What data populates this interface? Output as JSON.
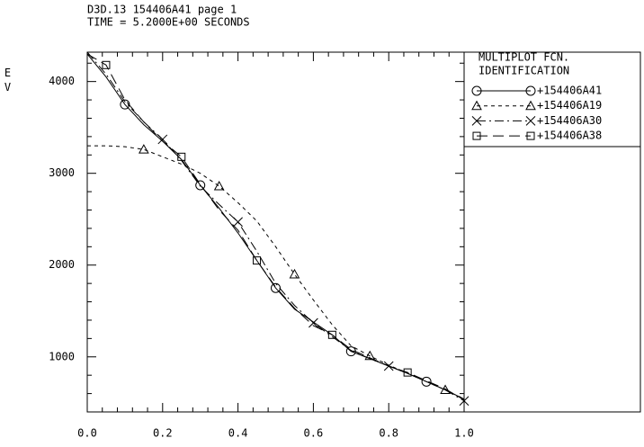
{
  "chart_data": {
    "type": "line",
    "header": [
      "D3D.13 154406A41 page 1",
      "TIME = 5.2000E+00 SECONDS"
    ],
    "y_label": "EV",
    "legend_title": [
      "MULTIPLOT FCN.",
      "IDENTIFICATION"
    ],
    "x": [
      0,
      0.05,
      0.1,
      0.15,
      0.2,
      0.25,
      0.3,
      0.35,
      0.4,
      0.45,
      0.5,
      0.55,
      0.6,
      0.65,
      0.7,
      0.75,
      0.8,
      0.85,
      0.9,
      0.95,
      1.0
    ],
    "series": [
      {
        "name": "+154406A41",
        "color": "#000000",
        "dash": "none",
        "marker": "circle",
        "values": [
          4300,
          4050,
          3750,
          3530,
          3350,
          3150,
          2870,
          2620,
          2350,
          2050,
          1750,
          1520,
          1380,
          1240,
          1060,
          980,
          900,
          820,
          730,
          640,
          540
        ]
      },
      {
        "name": "+154406A19",
        "color": "#000000",
        "dash": "4 4",
        "marker": "triangle",
        "values": [
          3300,
          3300,
          3290,
          3260,
          3180,
          3100,
          3000,
          2860,
          2680,
          2480,
          2200,
          1900,
          1620,
          1350,
          1120,
          1010,
          910,
          820,
          730,
          640,
          540
        ]
      },
      {
        "name": "+154406A30",
        "color": "#000000",
        "dash": "10 4 2 4",
        "marker": "x",
        "values": [
          4320,
          4080,
          3780,
          3560,
          3370,
          3140,
          2860,
          2660,
          2470,
          2150,
          1800,
          1560,
          1370,
          1220,
          1070,
          980,
          900,
          820,
          730,
          640,
          520
        ]
      },
      {
        "name": "+154406A38",
        "color": "#000000",
        "dash": "12 6",
        "marker": "square",
        "values": [
          4300,
          4180,
          3800,
          3560,
          3350,
          3180,
          2880,
          2600,
          2380,
          2050,
          1760,
          1530,
          1340,
          1240,
          1080,
          990,
          900,
          830,
          740,
          650,
          530
        ]
      }
    ],
    "xlim": [
      0,
      1
    ],
    "xticks": [
      {
        "value": 0,
        "label": "0.0"
      },
      0.2,
      0.4,
      0.6,
      0.8,
      {
        "value": 1,
        "label": "1.0"
      }
    ],
    "ylim": [
      400,
      4320
    ],
    "yticks": [
      1000,
      2000,
      3000,
      4000
    ],
    "grid": false
  }
}
